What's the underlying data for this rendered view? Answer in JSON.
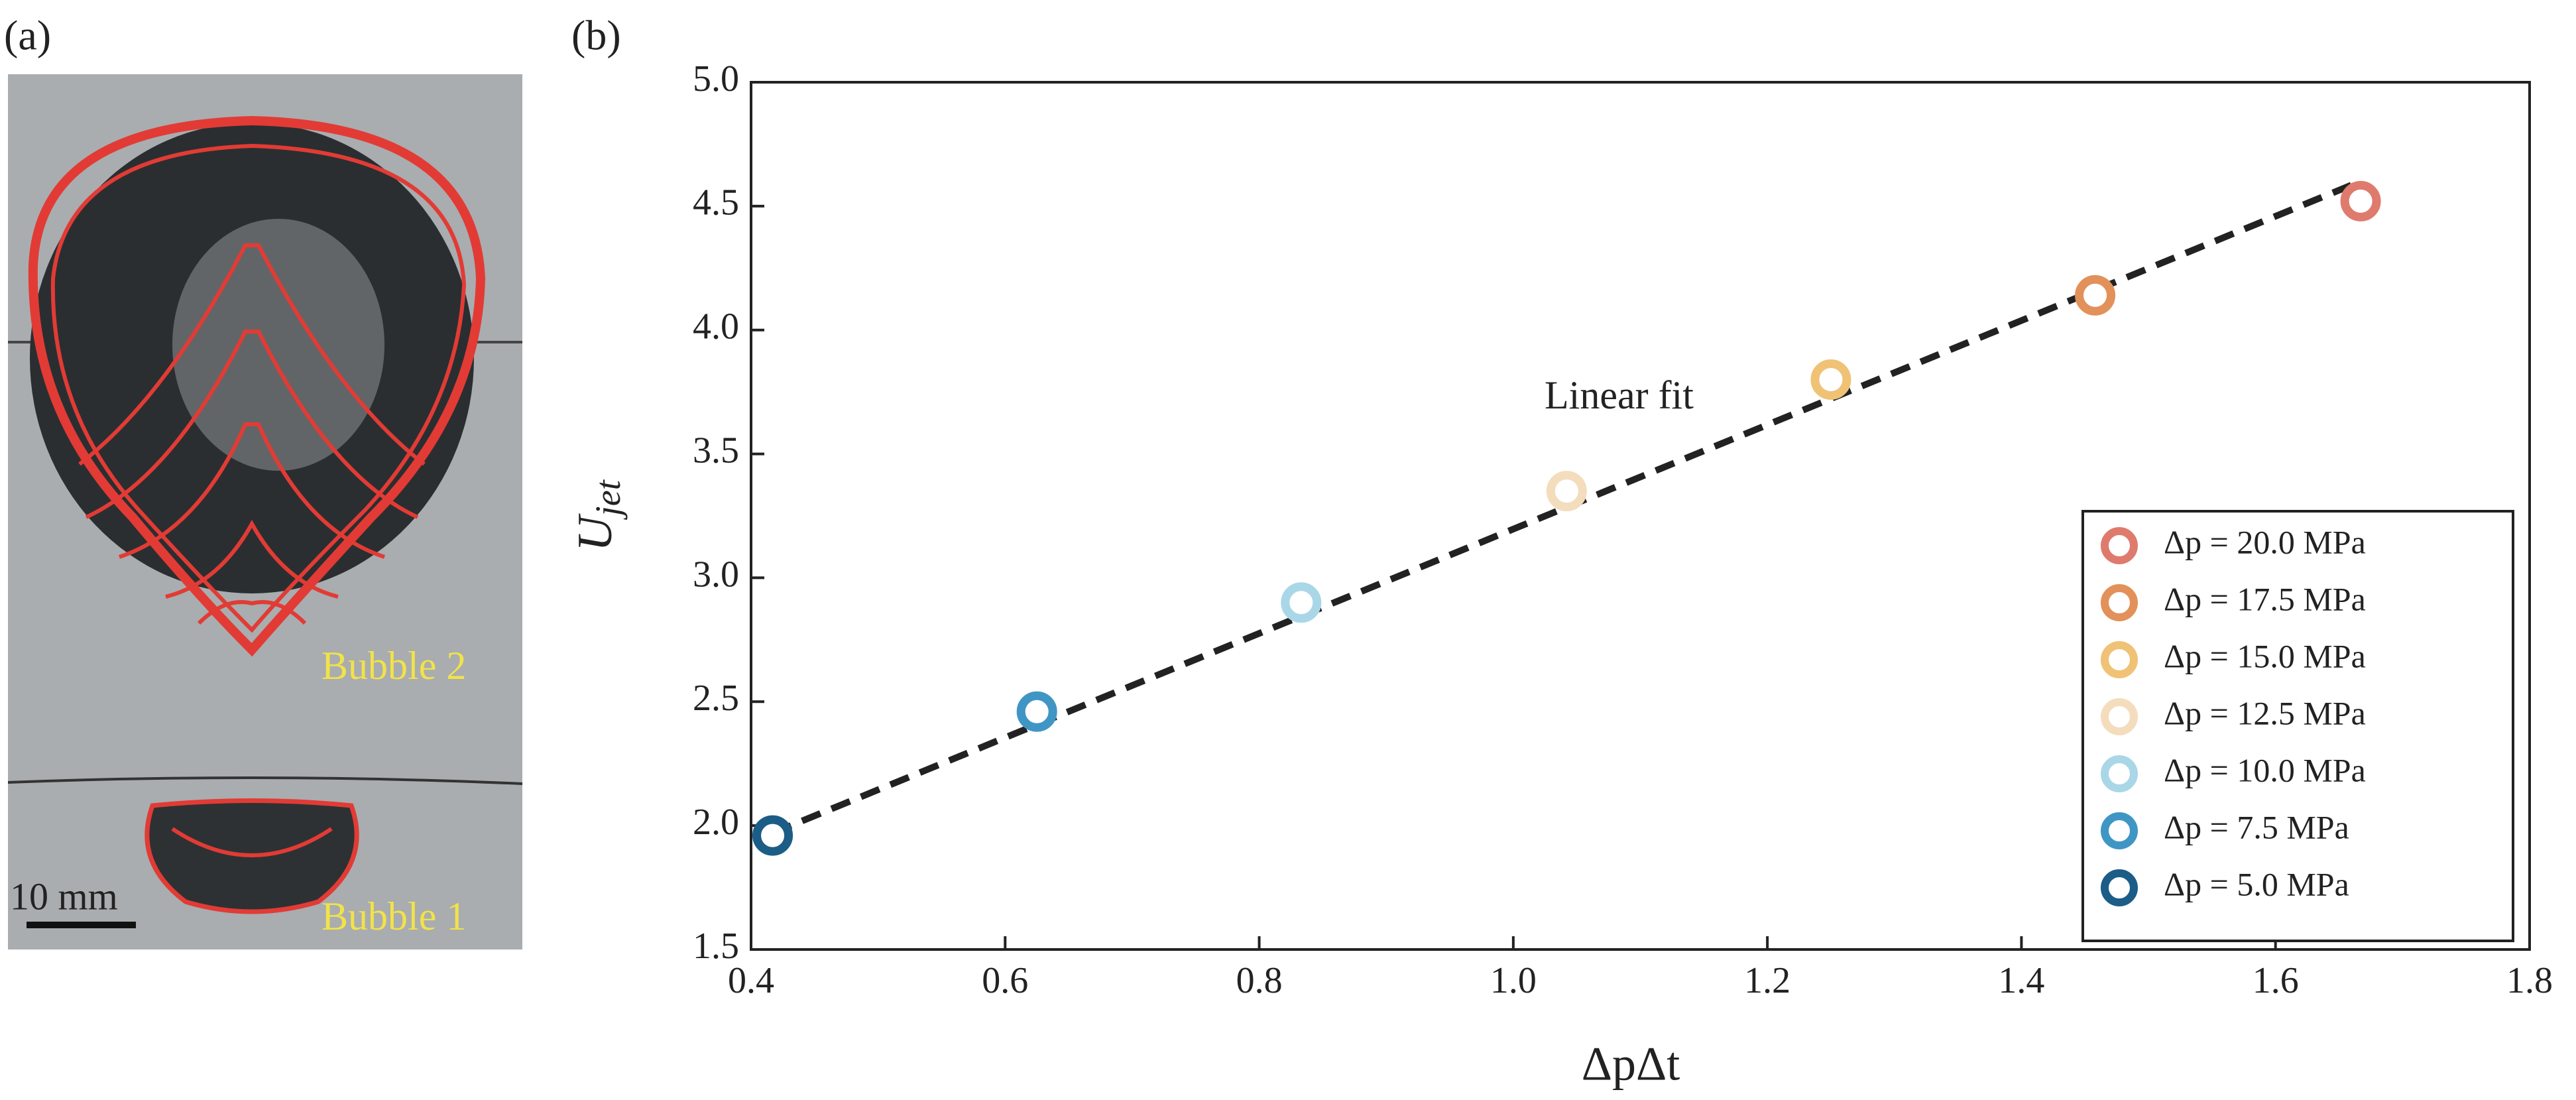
{
  "panel_labels": [
    "(a)",
    "(b)"
  ],
  "photo": {
    "labels": [
      "Bubble 2",
      "Bubble 1"
    ],
    "scale_bar": "10 mm"
  },
  "chart_data": {
    "type": "scatter",
    "xlabel": "ΔpΔt",
    "ylabel": {
      "main": "U",
      "sub": "jet"
    },
    "xlim": [
      0.4,
      1.8
    ],
    "ylim": [
      1.5,
      5.0
    ],
    "xticks": [
      0.4,
      0.6,
      0.8,
      {
        "value": 1,
        "label": "1.0"
      },
      1.2,
      1.4,
      1.6,
      1.8
    ],
    "yticks": [
      1.5,
      {
        "value": 2,
        "label": "2.0"
      },
      2.5,
      {
        "value": 3,
        "label": "3.0"
      },
      3.5,
      {
        "value": 4,
        "label": "4.0"
      },
      4.5,
      {
        "value": 5,
        "label": "5.0"
      }
    ],
    "legend": "lower right",
    "fit": {
      "name": "Linear fit",
      "color": "#222222",
      "x": [
        0.417,
        1.667
      ],
      "values": [
        1.97,
        4.6
      ]
    },
    "series": [
      {
        "name": "Δp = 20.0 MPa",
        "color": "#df7b6d",
        "x": [
          1.667
        ],
        "values": [
          4.52
        ]
      },
      {
        "name": "Δp = 17.5 MPa",
        "color": "#e2915a",
        "x": [
          1.458
        ],
        "values": [
          4.14
        ]
      },
      {
        "name": "Δp = 15.0 MPa",
        "color": "#efc276",
        "x": [
          1.25
        ],
        "values": [
          3.8
        ]
      },
      {
        "name": "Δp = 12.5 MPa",
        "color": "#f3ddbd",
        "x": [
          1.042
        ],
        "values": [
          3.35
        ]
      },
      {
        "name": "Δp = 10.0 MPa",
        "color": "#a9d7e8",
        "x": [
          0.833
        ],
        "values": [
          2.9
        ]
      },
      {
        "name": "Δp = 7.5 MPa",
        "color": "#3f96c5",
        "x": [
          0.625
        ],
        "values": [
          2.46
        ]
      },
      {
        "name": "Δp = 5.0 MPa",
        "color": "#1b5d86",
        "x": [
          0.417
        ],
        "values": [
          1.96
        ]
      }
    ]
  }
}
